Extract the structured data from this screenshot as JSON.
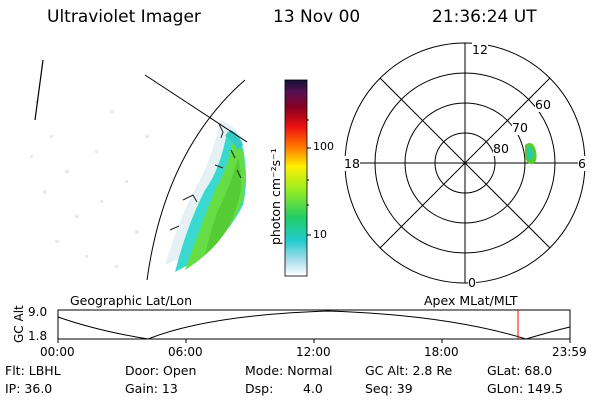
{
  "header": {
    "instrument": "Ultraviolet Imager",
    "date": "13 Nov 00",
    "time": "21:36:24 UT"
  },
  "colorbar": {
    "unit_label": "photon cm⁻²s⁻¹",
    "ticks": [
      "100",
      "10"
    ]
  },
  "polar_plot": {
    "mlt_labels": {
      "top": "12",
      "left": "18",
      "right": "6",
      "bottom": "0"
    },
    "mlat_labels": [
      "60",
      "70",
      "80"
    ]
  },
  "panel_labels": {
    "left": "Geographic Lat/Lon",
    "right": "Apex MLat/MLT"
  },
  "orbit_plot": {
    "ylabel": "GC Alt",
    "y_ticks": [
      "9.0",
      "1.8"
    ],
    "x_ticks": [
      "00:00",
      "06:00",
      "12:00",
      "18:00",
      "23:59"
    ],
    "marker_color": "#ff0000"
  },
  "info": {
    "flt": "Flt: LBHL",
    "ip": "IP: 36.0",
    "door": "Door: Open",
    "gain": "Gain: 13",
    "mode": "Mode: Normal",
    "dsp_label": "Dsp:",
    "dsp_value": "4.0",
    "gc_alt": "GC Alt: 2.8 Re",
    "seq": "Seq: 39",
    "glat": "GLat: 68.0",
    "glon": "GLon: 149.5"
  }
}
